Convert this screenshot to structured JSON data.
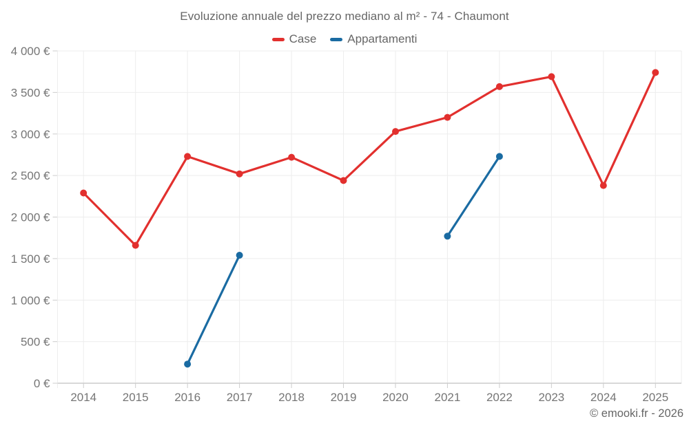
{
  "title": "Evoluzione annuale del prezzo mediano al m² - 74 - Chaumont",
  "legend": {
    "items": [
      {
        "label": "Case",
        "color": "#e2302e"
      },
      {
        "label": "Appartamenti",
        "color": "#1a6ba2"
      }
    ]
  },
  "footer": {
    "copyright": "© emooki.fr - 2026"
  },
  "colors": {
    "gridline": "#ededed",
    "axis_line": "#cccccc",
    "tick": "#cccccc",
    "axis_text": "#757575"
  },
  "chart_data": {
    "type": "line",
    "title": "Evoluzione annuale del prezzo mediano al m² - 74 - Chaumont",
    "xlabel": "",
    "ylabel": "",
    "categories": [
      2014,
      2015,
      2016,
      2017,
      2018,
      2019,
      2020,
      2021,
      2022,
      2023,
      2024,
      2025
    ],
    "series": [
      {
        "name": "Case",
        "color": "#e2302e",
        "values": [
          2290,
          1660,
          2730,
          2520,
          2720,
          2440,
          3030,
          3200,
          3570,
          3690,
          2380,
          3740
        ]
      },
      {
        "name": "Appartamenti",
        "color": "#1a6ba2",
        "values": [
          null,
          null,
          230,
          1540,
          null,
          null,
          null,
          1770,
          2730,
          null,
          null,
          null
        ]
      }
    ],
    "ylim": [
      0,
      4000
    ],
    "ytick_step": 500,
    "ytick_labels": [
      "0 €",
      "500 €",
      "1 000 €",
      "1 500 €",
      "2 000 €",
      "2 500 €",
      "3 000 €",
      "3 500 €",
      "4 000 €"
    ],
    "grid": true,
    "legend_position": "top",
    "marker": "circle"
  }
}
